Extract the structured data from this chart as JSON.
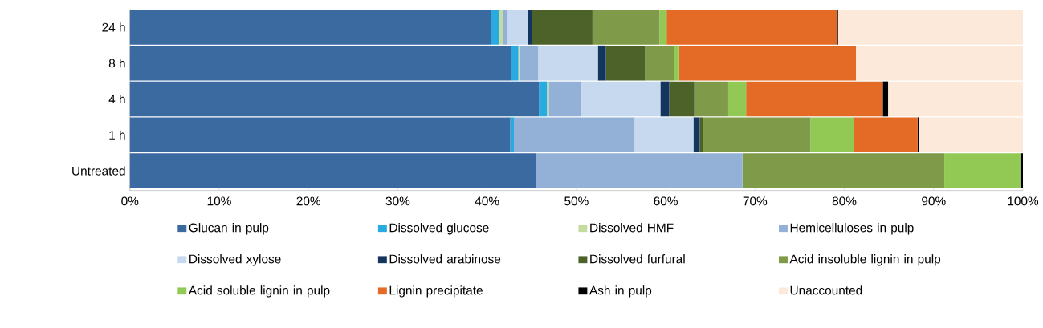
{
  "chart_data": {
    "type": "bar",
    "orientation": "horizontal",
    "stacked": true,
    "legend": "bottom",
    "categories": [
      "24 h",
      "8 h",
      "4 h",
      "1 h",
      "Untreated"
    ],
    "xlim": [
      0,
      100
    ],
    "xticks": [
      {
        "value": 0,
        "label": "0%"
      },
      {
        "value": 10,
        "label": "10%"
      },
      {
        "value": 20,
        "label": "20%"
      },
      {
        "value": 30,
        "label": "30%"
      },
      {
        "value": 40,
        "label": "40%"
      },
      {
        "value": 50,
        "label": "50%"
      },
      {
        "value": 60,
        "label": "60%"
      },
      {
        "value": 70,
        "label": "70%"
      },
      {
        "value": 80,
        "label": "80%"
      },
      {
        "value": 90,
        "label": "90%"
      },
      {
        "value": 100,
        "label": "100%"
      }
    ],
    "series": [
      {
        "name": "Glucan in pulp",
        "color": "#3a6aa0",
        "values": [
          40.4,
          42.7,
          45.8,
          42.6,
          45.5
        ]
      },
      {
        "name": "Dissolved glucose",
        "color": "#29abe2",
        "values": [
          0.9,
          0.8,
          0.9,
          0.4,
          0
        ]
      },
      {
        "name": "Dissolved HMF",
        "color": "#c4dca0",
        "values": [
          0.5,
          0.2,
          0.2,
          0,
          0
        ]
      },
      {
        "name": "Hemicelluloses in pulp",
        "color": "#93b1d7",
        "values": [
          0.5,
          2.0,
          3.6,
          13.5,
          23.1
        ]
      },
      {
        "name": "Dissolved xylose",
        "color": "#c6d9ef",
        "values": [
          2.3,
          6.7,
          8.9,
          6.6,
          0
        ]
      },
      {
        "name": "Dissolved arabinose",
        "color": "#14365e",
        "values": [
          0.4,
          0.9,
          1.0,
          0.7,
          0
        ]
      },
      {
        "name": "Dissolved furfural",
        "color": "#4d6228",
        "values": [
          6.8,
          4.4,
          2.8,
          0.4,
          0
        ]
      },
      {
        "name": "Acid insoluble lignin in pulp",
        "color": "#7f9a48",
        "values": [
          7.5,
          3.2,
          3.8,
          12.0,
          22.6
        ]
      },
      {
        "name": "Acid soluble lignin in pulp",
        "color": "#92c955",
        "values": [
          0.8,
          0.6,
          2.0,
          4.9,
          8.5
        ]
      },
      {
        "name": "Lignin precipitate",
        "color": "#e46b25",
        "values": [
          19.1,
          19.8,
          15.3,
          7.1,
          0
        ]
      },
      {
        "name": "Ash in pulp",
        "color": "#000000",
        "values": [
          0.1,
          0,
          0.6,
          0.2,
          0.3
        ]
      },
      {
        "name": "Unaccounted",
        "color": "#fde9d9",
        "values": [
          20.7,
          18.7,
          15.1,
          11.6,
          0
        ]
      }
    ]
  }
}
